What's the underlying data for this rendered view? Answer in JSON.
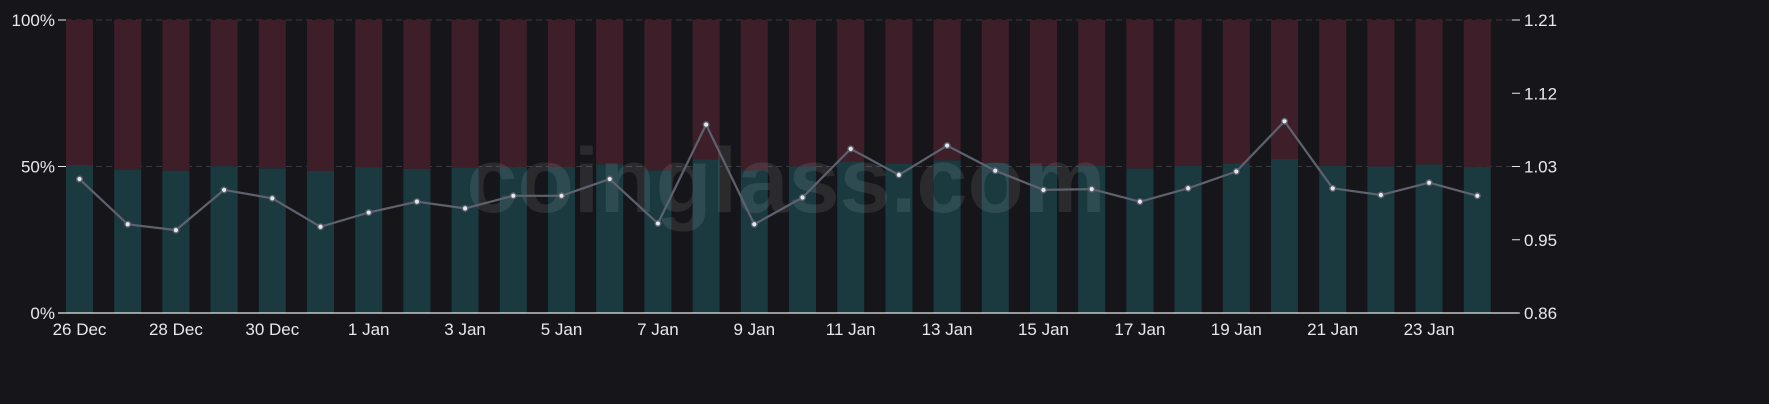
{
  "watermark": "coinglass.com",
  "chart_data": {
    "type": "bar",
    "stacked_percent": true,
    "categories": [
      "26 Dec",
      "27 Dec",
      "28 Dec",
      "29 Dec",
      "30 Dec",
      "31 Dec",
      "1 Jan",
      "2 Jan",
      "3 Jan",
      "4 Jan",
      "5 Jan",
      "6 Jan",
      "7 Jan",
      "8 Jan",
      "9 Jan",
      "10 Jan",
      "11 Jan",
      "12 Jan",
      "13 Jan",
      "14 Jan",
      "15 Jan",
      "16 Jan",
      "17 Jan",
      "18 Jan",
      "19 Jan",
      "20 Jan",
      "21 Jan",
      "22 Jan",
      "23 Jan",
      "24 Jan"
    ],
    "x_tick_labels": [
      "26 Dec",
      "28 Dec",
      "30 Dec",
      "1 Jan",
      "3 Jan",
      "5 Jan",
      "7 Jan",
      "9 Jan",
      "11 Jan",
      "13 Jan",
      "15 Jan",
      "17 Jan",
      "19 Jan",
      "21 Jan",
      "23 Jan"
    ],
    "series": [
      {
        "values": [
          50.5,
          48.8,
          48.6,
          50.1,
          49.4,
          48.5,
          49.8,
          49.2,
          49.7,
          49.9,
          49.9,
          50.8,
          48.7,
          52.5,
          48.7,
          50.0,
          51.7,
          51.0,
          52.1,
          51.3,
          50.2,
          50.3,
          49.3,
          50.3,
          51.0,
          52.6,
          50.3,
          50.0,
          50.7,
          49.9
        ]
      },
      {
        "values": [
          49.5,
          51.2,
          51.4,
          49.9,
          50.6,
          51.5,
          50.2,
          50.8,
          50.3,
          50.1,
          50.1,
          49.2,
          51.3,
          47.5,
          51.3,
          50.0,
          48.3,
          49.0,
          47.9,
          48.7,
          49.8,
          49.7,
          50.7,
          49.7,
          49.0,
          47.4,
          49.7,
          50.0,
          49.3,
          50.1
        ]
      },
      {
        "values": [
          1.02,
          0.966,
          0.959,
          1.007,
          0.997,
          0.963,
          0.98,
          0.993,
          0.985,
          1.0,
          1.0,
          1.02,
          0.967,
          1.085,
          0.966,
          0.998,
          1.056,
          1.025,
          1.06,
          1.03,
          1.007,
          1.008,
          0.993,
          1.009,
          1.029,
          1.089,
          1.0089,
          1.001,
          1.0156,
          1.0
        ]
      }
    ],
    "y_left": {
      "ticks": [
        "0%",
        "50%",
        "100%"
      ],
      "range": [
        0,
        100
      ]
    },
    "y_right": {
      "ticks": [
        "0.86",
        "0.95",
        "1.03",
        "1.12",
        "1.21"
      ],
      "range": [
        0.86,
        1.21
      ]
    },
    "grid": true,
    "colors": {
      "long": "#1a3a40",
      "short": "#3e1f29",
      "line": "#5d626e",
      "marker_fill": "#e6e8ee",
      "grid": "#3a3a3e",
      "axis": "#e8e8ea"
    }
  }
}
